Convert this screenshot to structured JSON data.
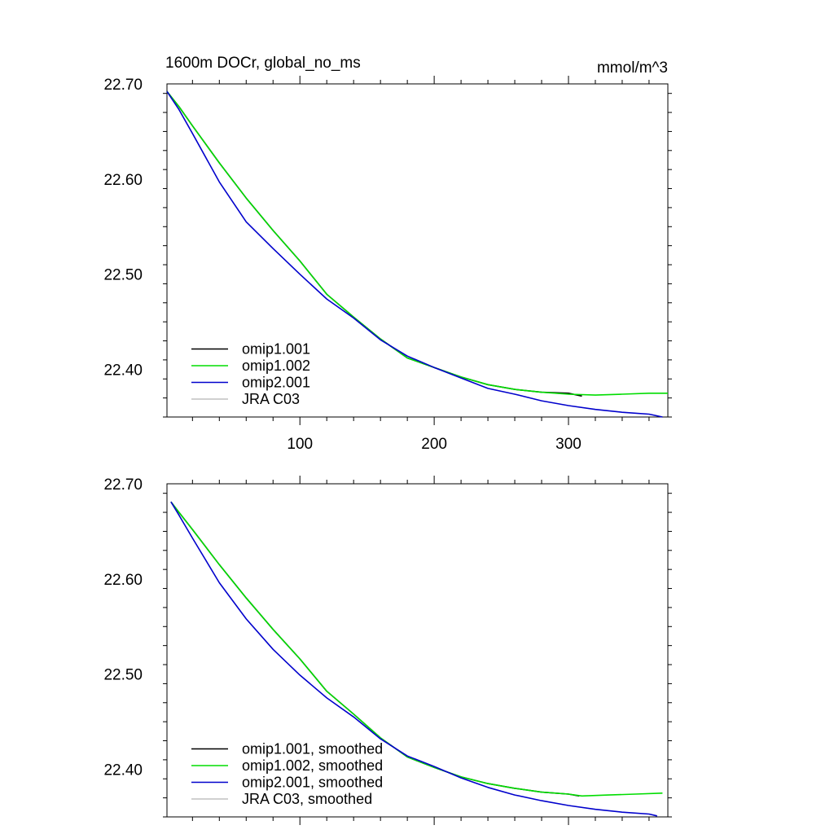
{
  "chart_data": [
    {
      "type": "line",
      "title": "1600m DOCr, global_no_ms",
      "units": "mmol/m^3",
      "xlim": [
        1,
        374
      ],
      "ylim": [
        22.35,
        22.7
      ],
      "xticks": [
        100,
        200,
        300
      ],
      "xtick_labels": [
        "100",
        "200",
        "300"
      ],
      "yticks": [
        22.4,
        22.5,
        22.6,
        22.7
      ],
      "ytick_labels": [
        "22.40",
        "22.50",
        "22.60",
        "22.70"
      ],
      "legend_position": "bottom-left",
      "series": [
        {
          "name": "omip1.001",
          "color": "#000000",
          "x": [
            1,
            10,
            20,
            40,
            60,
            80,
            100,
            120,
            140,
            160,
            180,
            200,
            220,
            240,
            260,
            280,
            300,
            310
          ],
          "y": [
            22.692,
            22.676,
            22.656,
            22.617,
            22.58,
            22.546,
            22.514,
            22.479,
            22.455,
            22.432,
            22.412,
            22.402,
            22.392,
            22.384,
            22.379,
            22.376,
            22.375,
            22.372
          ]
        },
        {
          "name": "omip1.002",
          "color": "#00dd00",
          "x": [
            1,
            10,
            20,
            40,
            60,
            80,
            100,
            120,
            140,
            160,
            180,
            200,
            220,
            240,
            260,
            280,
            300,
            320,
            340,
            360,
            374
          ],
          "y": [
            22.692,
            22.676,
            22.656,
            22.617,
            22.58,
            22.546,
            22.514,
            22.479,
            22.455,
            22.432,
            22.412,
            22.402,
            22.392,
            22.384,
            22.379,
            22.376,
            22.374,
            22.373,
            22.374,
            22.375,
            22.375
          ]
        },
        {
          "name": "omip2.001",
          "color": "#0000cc",
          "x": [
            1,
            10,
            20,
            40,
            60,
            80,
            100,
            120,
            140,
            160,
            180,
            200,
            220,
            240,
            260,
            280,
            300,
            320,
            340,
            360,
            370
          ],
          "y": [
            22.692,
            22.673,
            22.648,
            22.597,
            22.555,
            22.527,
            22.5,
            22.474,
            22.454,
            22.431,
            22.414,
            22.402,
            22.391,
            22.38,
            22.374,
            22.367,
            22.362,
            22.358,
            22.355,
            22.353,
            22.35
          ]
        },
        {
          "name": "JRA C03",
          "color": "#c0c0c0",
          "x": [],
          "y": []
        }
      ]
    },
    {
      "type": "line",
      "xlim": [
        1,
        374
      ],
      "ylim": [
        22.35,
        22.7
      ],
      "xticks": [
        100,
        200,
        300
      ],
      "yticks": [
        22.4,
        22.5,
        22.6,
        22.7
      ],
      "ytick_labels": [
        "22.40",
        "22.50",
        "22.60",
        "22.70"
      ],
      "legend_position": "bottom-left",
      "series": [
        {
          "name": "omip1.001, smoothed",
          "color": "#000000",
          "x": [
            4,
            10,
            20,
            40,
            60,
            80,
            100,
            120,
            140,
            160,
            180,
            200,
            220,
            240,
            260,
            280,
            300,
            308
          ],
          "y": [
            22.681,
            22.67,
            22.652,
            22.615,
            22.58,
            22.547,
            22.516,
            22.482,
            22.458,
            22.433,
            22.413,
            22.402,
            22.392,
            22.385,
            22.38,
            22.376,
            22.374,
            22.372
          ]
        },
        {
          "name": "omip1.002, smoothed",
          "color": "#00dd00",
          "x": [
            4,
            10,
            20,
            40,
            60,
            80,
            100,
            120,
            140,
            160,
            180,
            200,
            220,
            240,
            260,
            280,
            300,
            310,
            330,
            350,
            370
          ],
          "y": [
            22.681,
            22.67,
            22.652,
            22.615,
            22.58,
            22.547,
            22.516,
            22.482,
            22.458,
            22.433,
            22.413,
            22.402,
            22.392,
            22.385,
            22.38,
            22.376,
            22.374,
            22.372,
            22.373,
            22.374,
            22.375
          ]
        },
        {
          "name": "omip2.001, smoothed",
          "color": "#0000cc",
          "x": [
            4,
            10,
            20,
            40,
            60,
            80,
            100,
            120,
            140,
            160,
            180,
            200,
            220,
            240,
            260,
            280,
            300,
            320,
            340,
            360,
            366
          ],
          "y": [
            22.681,
            22.667,
            22.643,
            22.596,
            22.558,
            22.526,
            22.499,
            22.475,
            22.455,
            22.432,
            22.414,
            22.403,
            22.391,
            22.381,
            22.373,
            22.367,
            22.362,
            22.358,
            22.355,
            22.353,
            22.351
          ]
        },
        {
          "name": "JRA C03, smoothed",
          "color": "#c0c0c0",
          "x": [],
          "y": []
        }
      ]
    }
  ]
}
